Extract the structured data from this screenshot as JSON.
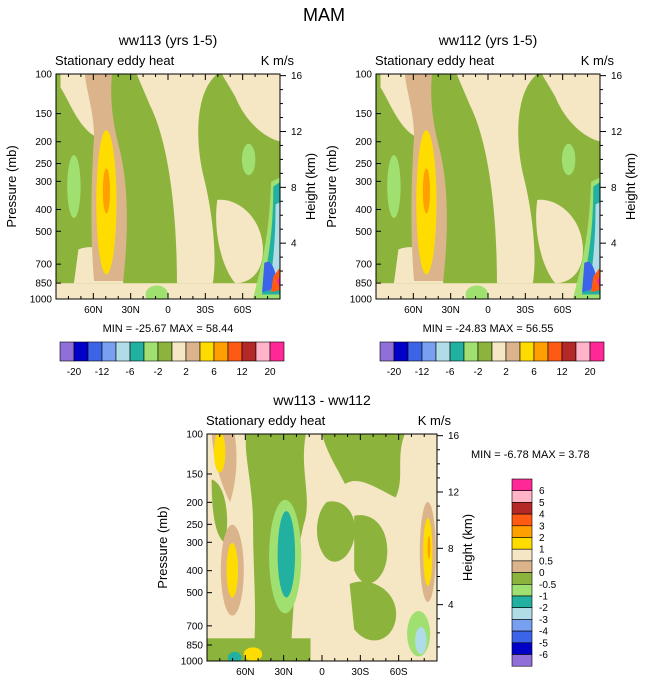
{
  "figure_title": "MAM",
  "chart_data": [
    {
      "type": "heatmap",
      "id": "top_left",
      "title": "ww113 (yrs 1-5)",
      "left_label": "Stationary eddy heat",
      "right_label": "K m/s",
      "ylabel": "Pressure (mb)",
      "y2label": "Height (km)",
      "pressure_ticks": [
        "100",
        "150",
        "200",
        "250",
        "300",
        "400",
        "500",
        "700",
        "850",
        "1000"
      ],
      "height_ticks": [
        "4",
        "8",
        "12",
        "16"
      ],
      "lat_ticks": [
        "60N",
        "30N",
        "0",
        "30S",
        "60S"
      ],
      "stats": "MIN = -25.67   MAX =  58.44",
      "min": -25.67,
      "max": 58.44
    },
    {
      "type": "heatmap",
      "id": "top_right",
      "title": "ww112 (yrs 1-5)",
      "left_label": "Stationary eddy heat",
      "right_label": "K m/s",
      "ylabel": "Pressure (mb)",
      "y2label": "Height (km)",
      "pressure_ticks": [
        "100",
        "150",
        "200",
        "250",
        "300",
        "400",
        "500",
        "700",
        "850",
        "1000"
      ],
      "height_ticks": [
        "4",
        "8",
        "12",
        "16"
      ],
      "lat_ticks": [
        "60N",
        "30N",
        "0",
        "30S",
        "60S"
      ],
      "stats": "MIN = -24.83   MAX =  56.55",
      "min": -24.83,
      "max": 56.55
    },
    {
      "type": "heatmap",
      "id": "bottom_diff",
      "title": "ww113 - ww112",
      "left_label": "Stationary eddy heat",
      "right_label": "K m/s",
      "ylabel": "Pressure (mb)",
      "y2label": "Height (km)",
      "pressure_ticks": [
        "100",
        "150",
        "200",
        "250",
        "300",
        "400",
        "500",
        "700",
        "850",
        "1000"
      ],
      "height_ticks": [
        "4",
        "8",
        "12",
        "16"
      ],
      "lat_ticks": [
        "60N",
        "30N",
        "0",
        "30S",
        "60S"
      ],
      "stats": "MIN =  -6.78   MAX =   3.78",
      "min": -6.78,
      "max": 3.78
    }
  ],
  "colorbar_top": {
    "colors": [
      "#9070d8",
      "#0000c8",
      "#3c64e8",
      "#78a0f0",
      "#b0dce8",
      "#22b0a0",
      "#a0e070",
      "#8cb43c",
      "#f5e6c4",
      "#dcb48c",
      "#ffdc00",
      "#ffa000",
      "#ff5a14",
      "#b42828",
      "#ffb4c8",
      "#ff2896"
    ],
    "labels": [
      "-20",
      "-12",
      "-6",
      "-2",
      "2",
      "6",
      "12",
      "20"
    ]
  },
  "colorbar_diff": {
    "colors": [
      "#ff2896",
      "#ffb4c8",
      "#b42828",
      "#ff5a14",
      "#ffa000",
      "#ffdc00",
      "#f5e6c4",
      "#dcb48c",
      "#8cb43c",
      "#a0e070",
      "#22b0a0",
      "#b0dce8",
      "#78a0f0",
      "#3c64e8",
      "#0000c8",
      "#9070d8"
    ],
    "labels": [
      "6",
      "5",
      "4",
      "3",
      "2",
      "1",
      "0.5",
      "0",
      "-0.5",
      "-1",
      "-2",
      "-3",
      "-4",
      "-5",
      "-6"
    ]
  },
  "palette": {
    "green": "#8cb43c",
    "light_green": "#a0e070",
    "cream": "#f5e6c4",
    "tan": "#dcb48c",
    "yellow": "#ffdc00",
    "orange": "#ffa000",
    "teal": "#22b0a0",
    "light_blue": "#b0dce8",
    "blue": "#3c64e8",
    "red": "#ff5a14",
    "pink": "#ff2896"
  }
}
